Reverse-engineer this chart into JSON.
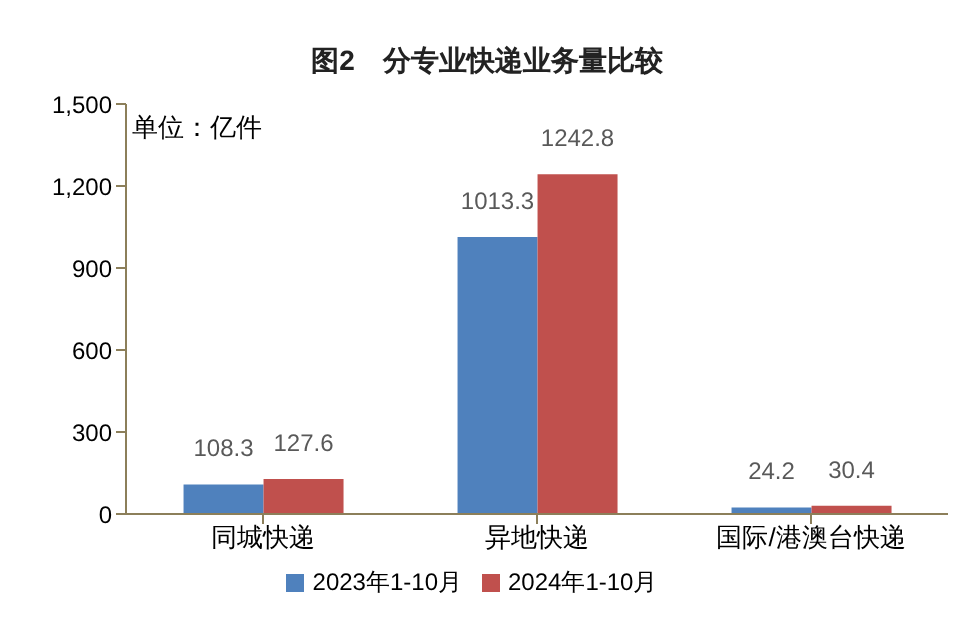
{
  "chart_data": {
    "type": "bar",
    "title": "图2　分专业快递业务量比较",
    "annotations": [
      "单位：亿件"
    ],
    "categories": [
      "同城快递",
      "异地快递",
      "国际/港澳台快递"
    ],
    "series": [
      {
        "name": "2023年1-10月",
        "color": "#4f81bd",
        "values": [
          108.3,
          1013.3,
          24.2
        ]
      },
      {
        "name": "2024年1-10月",
        "color": "#c0504d",
        "values": [
          127.6,
          1242.8,
          30.4
        ]
      }
    ],
    "ylim": [
      0,
      1500
    ],
    "yticks": [
      {
        "value": 0,
        "label": "0"
      },
      {
        "value": 300,
        "label": "300"
      },
      {
        "value": 600,
        "label": "600"
      },
      {
        "value": 900,
        "label": "900"
      },
      {
        "value": 1200,
        "label": "1,200"
      },
      {
        "value": 1500,
        "label": "1,500"
      }
    ],
    "data_labels": true,
    "legend": "bottom",
    "grid": false
  }
}
